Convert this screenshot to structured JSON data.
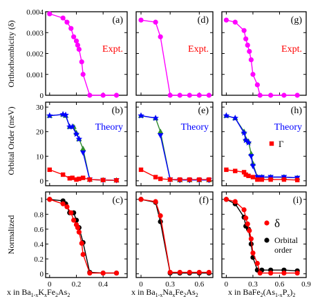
{
  "colors": {
    "magenta": "#ff00ff",
    "blue": "#0000ff",
    "green": "#2e8b2e",
    "red": "#ff0000",
    "black": "#000000"
  },
  "row_labels": [
    "Orthorhombicity (δ)",
    "Orbital Order (meV)",
    "Normalized"
  ],
  "x_labels": {
    "col1": {
      "base": "x in Ba",
      "sub1": "1-x",
      "mid1": "K",
      "sub2": "x",
      "mid2": "Fe",
      "sub3": "2",
      "mid3": "As",
      "sub4": "2"
    },
    "col2": {
      "base": "x in Ba",
      "sub1": "1-x",
      "mid1": "Na",
      "sub2": "x",
      "mid2": "Fe",
      "sub3": "2",
      "mid3": "As",
      "sub4": "2"
    },
    "col3": {
      "base": "x in BaFe",
      "sub1": "2",
      "mid1": "(As",
      "sub2": "1-x",
      "mid2": "P",
      "sub3": "x",
      "mid3": ")",
      "sub4": "2"
    }
  },
  "chart_data": [
    {
      "panel_label": "(a)",
      "type": "line",
      "annotation": "Expt.",
      "ylim": [
        0,
        0.004
      ],
      "yticks": [
        "0",
        "0.001",
        "0.002",
        "0.003",
        "0.004"
      ],
      "xlim": [
        -0.03,
        0.58
      ],
      "xticks": [
        "0",
        "0.2",
        "0.4"
      ],
      "series": [
        {
          "color": "magenta",
          "marker": "circle",
          "x": [
            0.0,
            0.1,
            0.13,
            0.16,
            0.18,
            0.2,
            0.21,
            0.22,
            0.24,
            0.25,
            0.3,
            0.4,
            0.5
          ],
          "y": [
            0.0039,
            0.0037,
            0.0035,
            0.0032,
            0.0028,
            0.0026,
            0.0024,
            0.0022,
            0.0016,
            0.001,
            0.0,
            0.0,
            0.0
          ]
        }
      ]
    },
    {
      "panel_label": "(d)",
      "type": "line",
      "annotation": "Expt.",
      "ylim": [
        0,
        0.004
      ],
      "yticks": [
        "0",
        "0.001",
        "0.002",
        "0.003",
        "0.004"
      ],
      "xlim": [
        -0.05,
        0.74
      ],
      "xticks": [
        "0",
        "0.3",
        "0.6"
      ],
      "series": [
        {
          "color": "magenta",
          "marker": "circle",
          "x": [
            0.0,
            0.15,
            0.2,
            0.3,
            0.4,
            0.5,
            0.6,
            0.7
          ],
          "y": [
            0.0036,
            0.0035,
            0.0028,
            0.0,
            0.0,
            0.0,
            0.0,
            0.0
          ]
        }
      ]
    },
    {
      "panel_label": "(g)",
      "type": "line",
      "annotation": "Expt.",
      "ylim": [
        0,
        0.004
      ],
      "yticks": [
        "0",
        "0.001",
        "0.002",
        "0.003",
        "0.004"
      ],
      "xlim": [
        -0.05,
        0.9
      ],
      "xticks": [
        "0",
        "0.3",
        "0.6",
        "0.9"
      ],
      "series": [
        {
          "color": "magenta",
          "marker": "circle",
          "x": [
            0.0,
            0.1,
            0.2,
            0.22,
            0.24,
            0.26,
            0.28,
            0.3,
            0.35,
            0.38,
            0.5,
            0.65,
            0.8
          ],
          "y": [
            0.0036,
            0.0035,
            0.0031,
            0.0027,
            0.0024,
            0.0021,
            0.0017,
            0.001,
            0.0005,
            0.0,
            0.0,
            0.0,
            0.0
          ]
        }
      ]
    },
    {
      "panel_label": "(b)",
      "type": "line",
      "annotation": "Theory",
      "ylim": [
        -2,
        32
      ],
      "yticks": [
        "0",
        "10",
        "20",
        "30"
      ],
      "xlim": [
        -0.03,
        0.58
      ],
      "xticks": [
        "0",
        "0.2",
        "0.4"
      ],
      "series": [
        {
          "color": "green",
          "marker": "triangle-up",
          "x": [
            0.0,
            0.1,
            0.12,
            0.15,
            0.18,
            0.2,
            0.22,
            0.25,
            0.3,
            0.4,
            0.5
          ],
          "y": [
            26.5,
            27.0,
            26.5,
            22.0,
            22.0,
            19.5,
            17.0,
            13.0,
            0.5,
            0.3,
            0.2
          ]
        },
        {
          "color": "blue",
          "marker": "star",
          "x": [
            0.0,
            0.1,
            0.12,
            0.15,
            0.17,
            0.2,
            0.22
          ],
          "y": [
            26.5,
            27.0,
            26.8,
            22.0,
            22.0,
            19.0,
            17.0
          ]
        },
        {
          "color": "blue",
          "marker": "triangle-down",
          "x": [
            0.25,
            0.3,
            0.4,
            0.5
          ],
          "y": [
            11.5,
            0.5,
            0.3,
            0.2
          ]
        },
        {
          "color": "red",
          "marker": "square",
          "x": [
            0.0,
            0.1,
            0.15,
            0.17,
            0.2,
            0.22,
            0.25,
            0.3,
            0.4,
            0.5
          ],
          "y": [
            4.5,
            2.5,
            1.0,
            1.2,
            0.5,
            0.8,
            1.2,
            0.5,
            0.3,
            0.2
          ]
        }
      ]
    },
    {
      "panel_label": "(e)",
      "type": "line",
      "annotation": "Theory",
      "ylim": [
        -2,
        32
      ],
      "yticks": [
        "0",
        "10",
        "20",
        "30"
      ],
      "xlim": [
        -0.05,
        0.74
      ],
      "xticks": [
        "0",
        "0.3",
        "0.6"
      ],
      "series": [
        {
          "color": "green",
          "marker": "triangle-up",
          "x": [
            0.0,
            0.15,
            0.2,
            0.3,
            0.4,
            0.5,
            0.6,
            0.7
          ],
          "y": [
            26.5,
            25.5,
            20.0,
            0.5,
            0.3,
            0.3,
            0.3,
            0.3
          ]
        },
        {
          "color": "blue",
          "marker": "star",
          "x": [
            0.0,
            0.15
          ],
          "y": [
            26.5,
            25.5
          ]
        },
        {
          "color": "blue",
          "marker": "triangle-down",
          "x": [
            0.2,
            0.3,
            0.4,
            0.5,
            0.6,
            0.7
          ],
          "y": [
            18.5,
            0.5,
            0.3,
            0.3,
            0.3,
            0.3
          ]
        },
        {
          "color": "red",
          "marker": "square",
          "x": [
            0.0,
            0.15,
            0.2,
            0.3,
            0.4,
            0.5,
            0.6,
            0.7
          ],
          "y": [
            4.5,
            1.5,
            0.8,
            0.5,
            0.5,
            0.5,
            0.5,
            0.5
          ]
        }
      ]
    },
    {
      "panel_label": "(h)",
      "type": "line",
      "annotation": "Theory",
      "legend_label": "Γ",
      "ylim": [
        -2,
        32
      ],
      "yticks": [
        "0",
        "10",
        "20",
        "30"
      ],
      "xlim": [
        -0.05,
        0.9
      ],
      "xticks": [
        "0",
        "0.3",
        "0.6",
        "0.9"
      ],
      "series": [
        {
          "color": "green",
          "marker": "triangle-up",
          "x": [
            0.0,
            0.1,
            0.2,
            0.22,
            0.25,
            0.28,
            0.3,
            0.35,
            0.4,
            0.5,
            0.65,
            0.8
          ],
          "y": [
            26.5,
            25.5,
            20.0,
            17.0,
            16.0,
            11.0,
            7.0,
            1.5,
            1.5,
            1.5,
            1.5,
            1.2
          ]
        },
        {
          "color": "blue",
          "marker": "star",
          "x": [
            0.0,
            0.1,
            0.2,
            0.22,
            0.25
          ],
          "y": [
            26.5,
            25.5,
            19.5,
            16.5,
            15.5
          ]
        },
        {
          "color": "blue",
          "marker": "triangle-down",
          "x": [
            0.28,
            0.3,
            0.35,
            0.4,
            0.5,
            0.65,
            0.8
          ],
          "y": [
            10.0,
            6.0,
            1.5,
            1.5,
            1.5,
            1.5,
            1.2
          ]
        },
        {
          "name": "Γ",
          "color": "red",
          "marker": "square",
          "x": [
            0.0,
            0.1,
            0.2,
            0.22,
            0.25,
            0.3,
            0.35,
            0.4,
            0.5,
            0.65,
            0.8
          ],
          "y": [
            4.5,
            4.0,
            3.5,
            2.5,
            2.0,
            1.5,
            0.5,
            0.5,
            0.5,
            0.5,
            0.3
          ]
        }
      ]
    },
    {
      "panel_label": "(c)",
      "type": "line",
      "ylim": [
        -0.05,
        1.1
      ],
      "yticks": [
        "0",
        "0.2",
        "0.4",
        "0.6",
        "0.8",
        "1"
      ],
      "xlim": [
        -0.03,
        0.58
      ],
      "xticks": [
        "0",
        "0.2",
        "0.4"
      ],
      "series": [
        {
          "color": "black",
          "marker": "circle",
          "x": [
            0.0,
            0.1,
            0.12,
            0.15,
            0.18,
            0.2,
            0.22,
            0.25,
            0.3,
            0.4,
            0.5
          ],
          "y": [
            1.0,
            0.98,
            0.94,
            0.82,
            0.82,
            0.72,
            0.62,
            0.42,
            0.02,
            0.01,
            0.01
          ]
        },
        {
          "color": "red",
          "marker": "circle",
          "x": [
            0.0,
            0.1,
            0.13,
            0.16,
            0.18,
            0.2,
            0.21,
            0.22,
            0.24,
            0.25,
            0.3,
            0.4,
            0.5
          ],
          "y": [
            1.0,
            0.94,
            0.9,
            0.82,
            0.72,
            0.66,
            0.62,
            0.56,
            0.41,
            0.26,
            0.01,
            0.01,
            0.01
          ]
        }
      ]
    },
    {
      "panel_label": "(f)",
      "type": "line",
      "ylim": [
        -0.05,
        1.1
      ],
      "yticks": [
        "0",
        "0.2",
        "0.4",
        "0.6",
        "0.8",
        "1"
      ],
      "xlim": [
        -0.05,
        0.74
      ],
      "xticks": [
        "0",
        "0.3",
        "0.6"
      ],
      "series": [
        {
          "color": "black",
          "marker": "circle",
          "x": [
            0.0,
            0.15,
            0.2,
            0.3,
            0.4,
            0.5,
            0.6,
            0.7
          ],
          "y": [
            1.0,
            0.96,
            0.7,
            0.01,
            0.01,
            0.01,
            0.01,
            0.01
          ]
        },
        {
          "color": "red",
          "marker": "circle",
          "x": [
            0.0,
            0.15,
            0.2,
            0.3,
            0.4,
            0.5,
            0.6,
            0.7
          ],
          "y": [
            1.0,
            0.97,
            0.78,
            0.02,
            0.02,
            0.02,
            0.02,
            0.02
          ]
        }
      ]
    },
    {
      "panel_label": "(i)",
      "type": "line",
      "legend": [
        "δ",
        "Orbital order"
      ],
      "ylim": [
        -0.05,
        1.1
      ],
      "yticks": [
        "0",
        "0.2",
        "0.4",
        "0.6",
        "0.8",
        "1"
      ],
      "xlim": [
        -0.05,
        0.9
      ],
      "xticks": [
        "0",
        "0.3",
        "0.6",
        "0.9"
      ],
      "series": [
        {
          "name": "Orbital order",
          "color": "black",
          "marker": "circle",
          "x": [
            0.0,
            0.1,
            0.2,
            0.22,
            0.25,
            0.28,
            0.3,
            0.35,
            0.4,
            0.5,
            0.65,
            0.8
          ],
          "y": [
            1.0,
            0.94,
            0.76,
            0.64,
            0.6,
            0.4,
            0.22,
            0.05,
            0.05,
            0.05,
            0.05,
            0.04
          ]
        },
        {
          "name": "δ",
          "color": "red",
          "marker": "circle",
          "x": [
            0.0,
            0.1,
            0.2,
            0.22,
            0.24,
            0.26,
            0.28,
            0.3,
            0.35,
            0.38,
            0.5,
            0.65,
            0.8
          ],
          "y": [
            1.0,
            0.97,
            0.86,
            0.75,
            0.67,
            0.58,
            0.47,
            0.28,
            0.14,
            0.01,
            0.01,
            0.01,
            0.01
          ]
        }
      ]
    }
  ]
}
